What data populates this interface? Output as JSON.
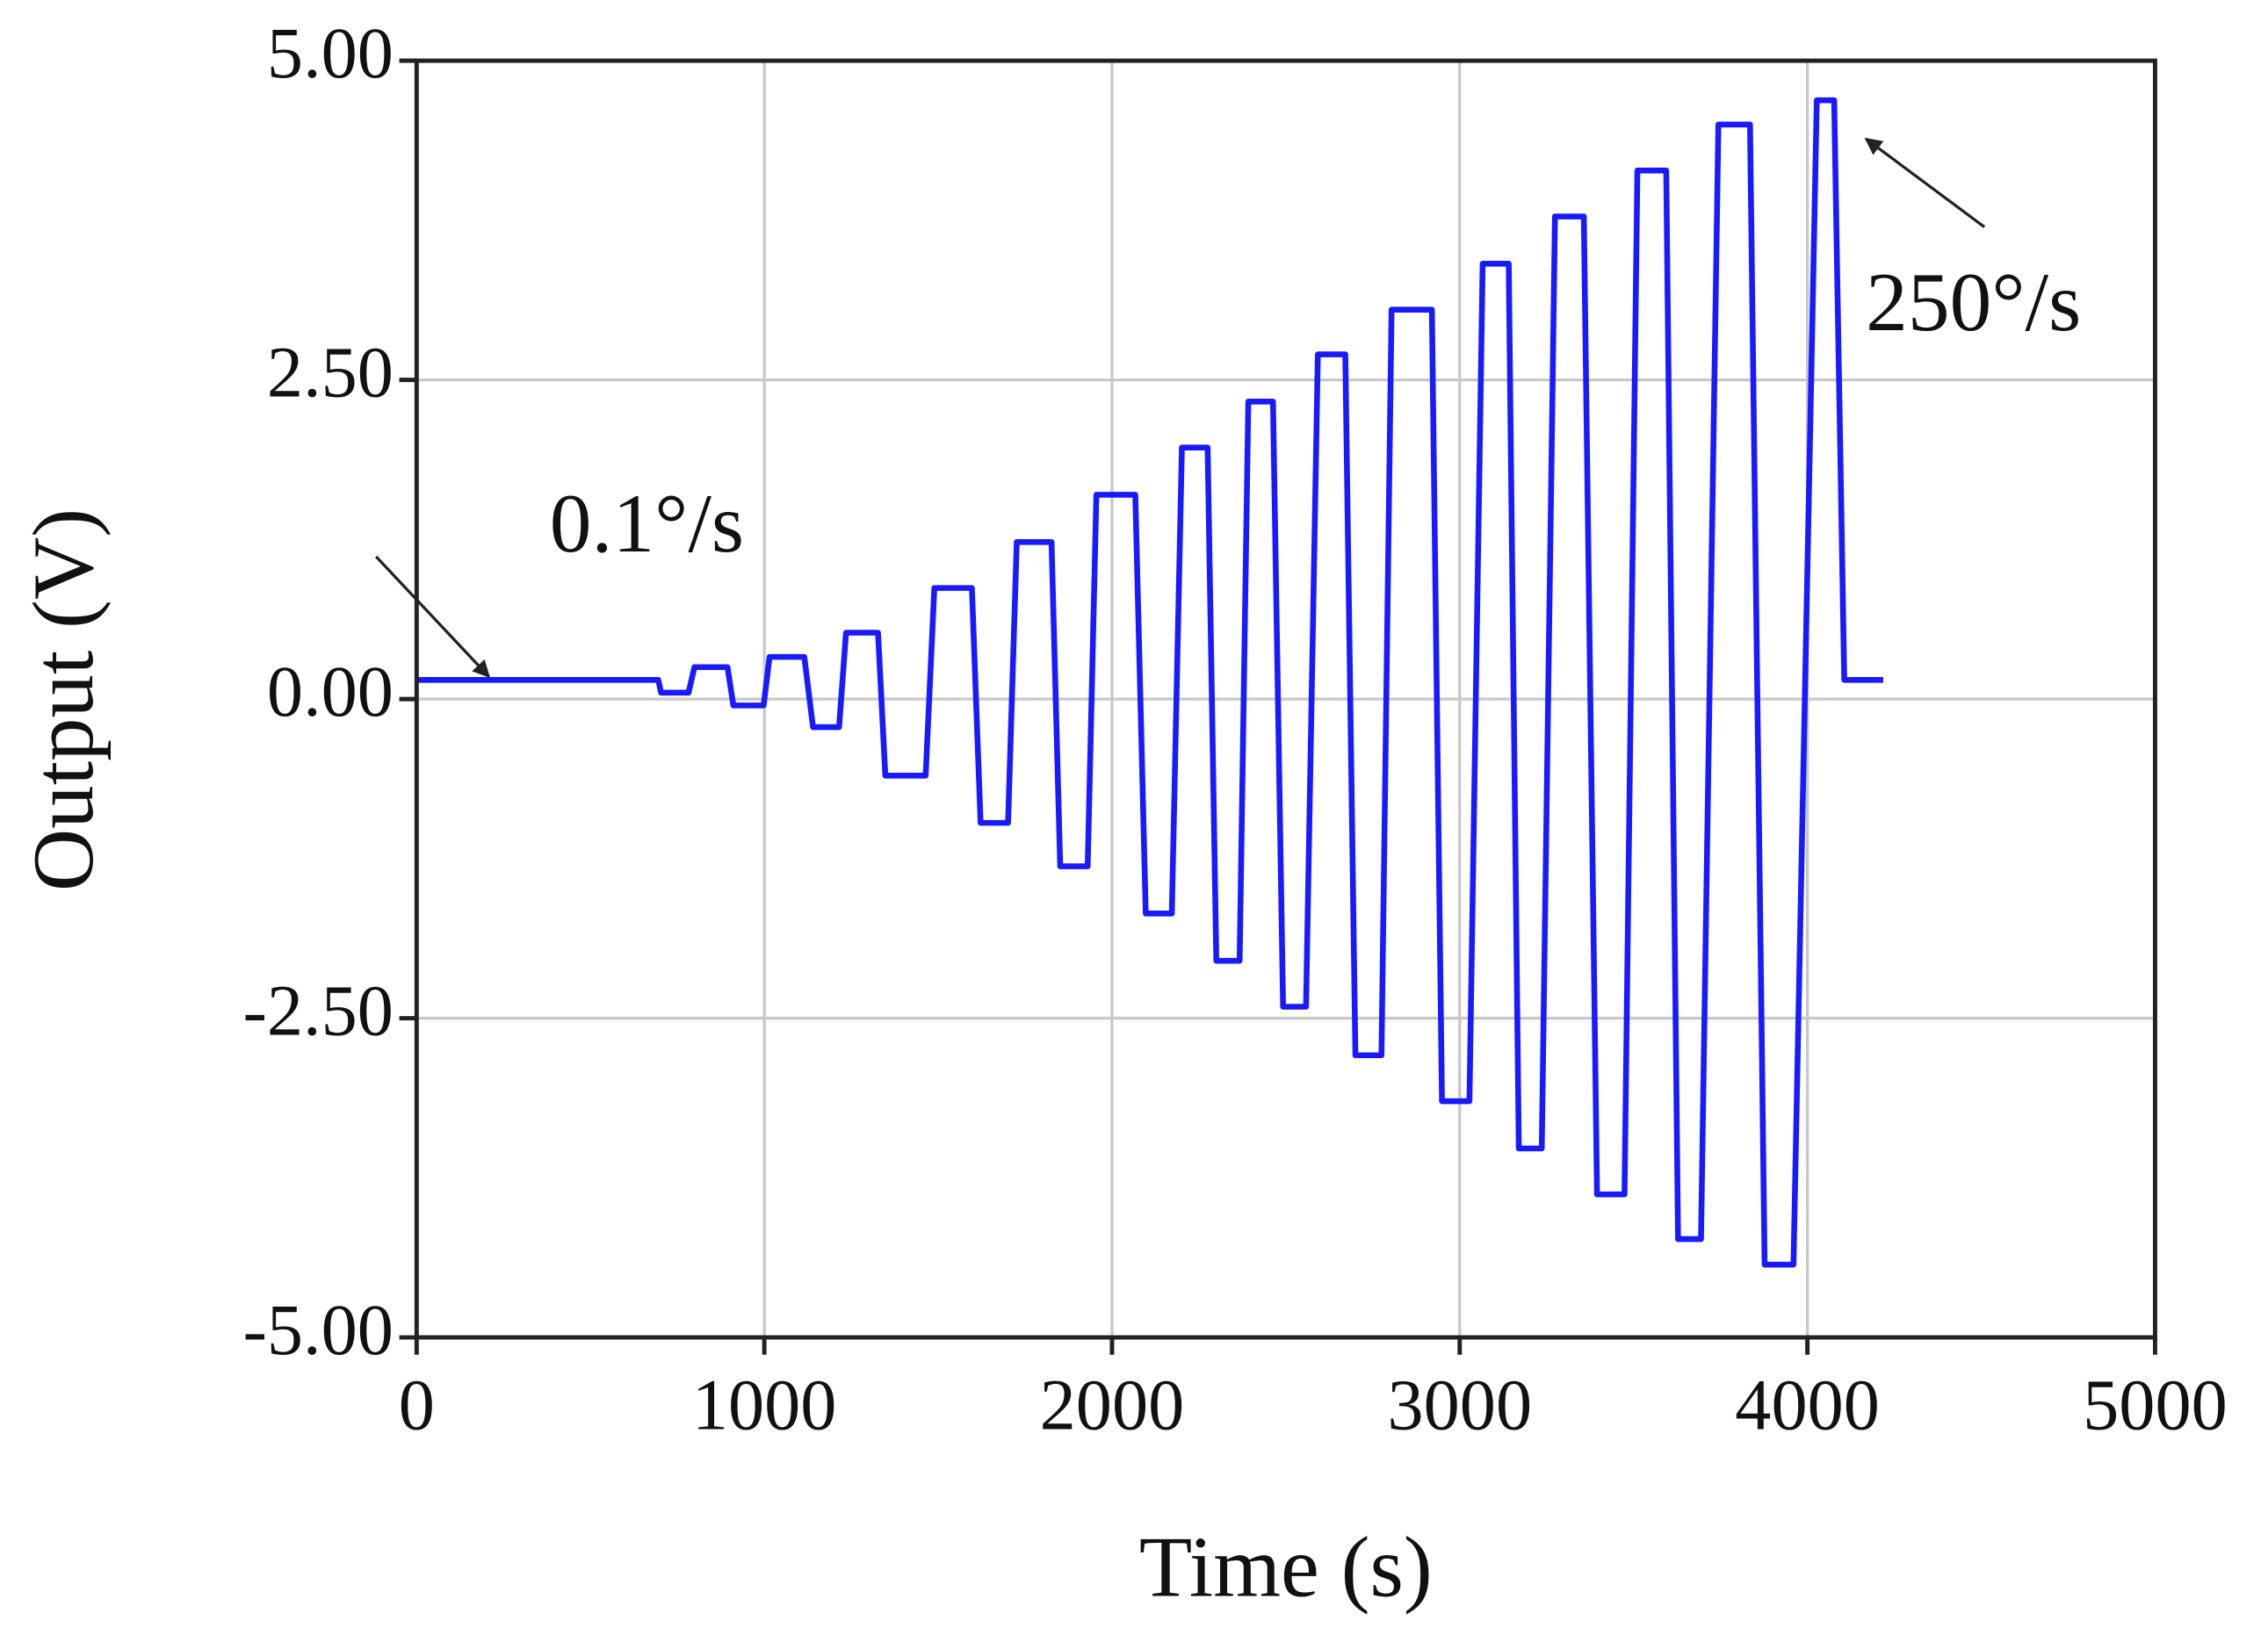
{
  "chart_data": {
    "type": "line",
    "x_label": "Time (s)",
    "y_label": "Output (V)",
    "annotations": [
      "0.1°/s",
      "250°/s"
    ],
    "xlim": [
      0,
      5000
    ],
    "xticks": [
      0,
      1000,
      2000,
      3000,
      4000,
      5000
    ],
    "ylim": [
      -5,
      5
    ],
    "yticks": [
      {
        "value": -5,
        "label": "-5.00"
      },
      {
        "value": -2.5,
        "label": "-2.50"
      },
      {
        "value": 0,
        "label": "0.00"
      },
      {
        "value": 2.5,
        "label": "2.50"
      },
      {
        "value": 5,
        "label": "5.00"
      }
    ],
    "grid": true,
    "series": [
      {
        "color": "#1a1aff",
        "x": [
          0,
          695,
          703,
          782,
          799,
          894,
          911,
          998,
          1015,
          1115,
          1140,
          1215,
          1235,
          1327,
          1348,
          1464,
          1489,
          1597,
          1622,
          1701,
          1726,
          1826,
          1851,
          1930,
          1955,
          2067,
          2097,
          2172,
          2201,
          2275,
          2300,
          2367,
          2392,
          2463,
          2492,
          2558,
          2592,
          2671,
          2700,
          2775,
          2804,
          2920,
          2949,
          3028,
          3066,
          3141,
          3170,
          3236,
          3274,
          3357,
          3395,
          3474,
          3511,
          3594,
          3628,
          3694,
          3744,
          3835,
          3877,
          3960,
          4027,
          4077,
          4106,
          4218
        ],
        "values": [
          0.15,
          0.15,
          0.05,
          0.05,
          0.25,
          0.25,
          -0.05,
          -0.05,
          0.33,
          0.33,
          -0.22,
          -0.22,
          0.52,
          0.52,
          -0.6,
          -0.6,
          0.87,
          0.87,
          -0.97,
          -0.97,
          1.23,
          1.23,
          -1.31,
          -1.31,
          1.6,
          1.6,
          -1.68,
          -1.68,
          1.97,
          1.97,
          -2.05,
          -2.05,
          2.33,
          2.33,
          -2.41,
          -2.41,
          2.7,
          2.7,
          -2.79,
          -2.79,
          3.05,
          3.05,
          -3.15,
          -3.15,
          3.41,
          3.41,
          -3.52,
          -3.52,
          3.78,
          3.78,
          -3.88,
          -3.88,
          4.14,
          4.14,
          -4.23,
          -4.23,
          4.5,
          4.5,
          -4.43,
          -4.43,
          4.69,
          4.69,
          0.15,
          0.15
        ]
      }
    ]
  }
}
